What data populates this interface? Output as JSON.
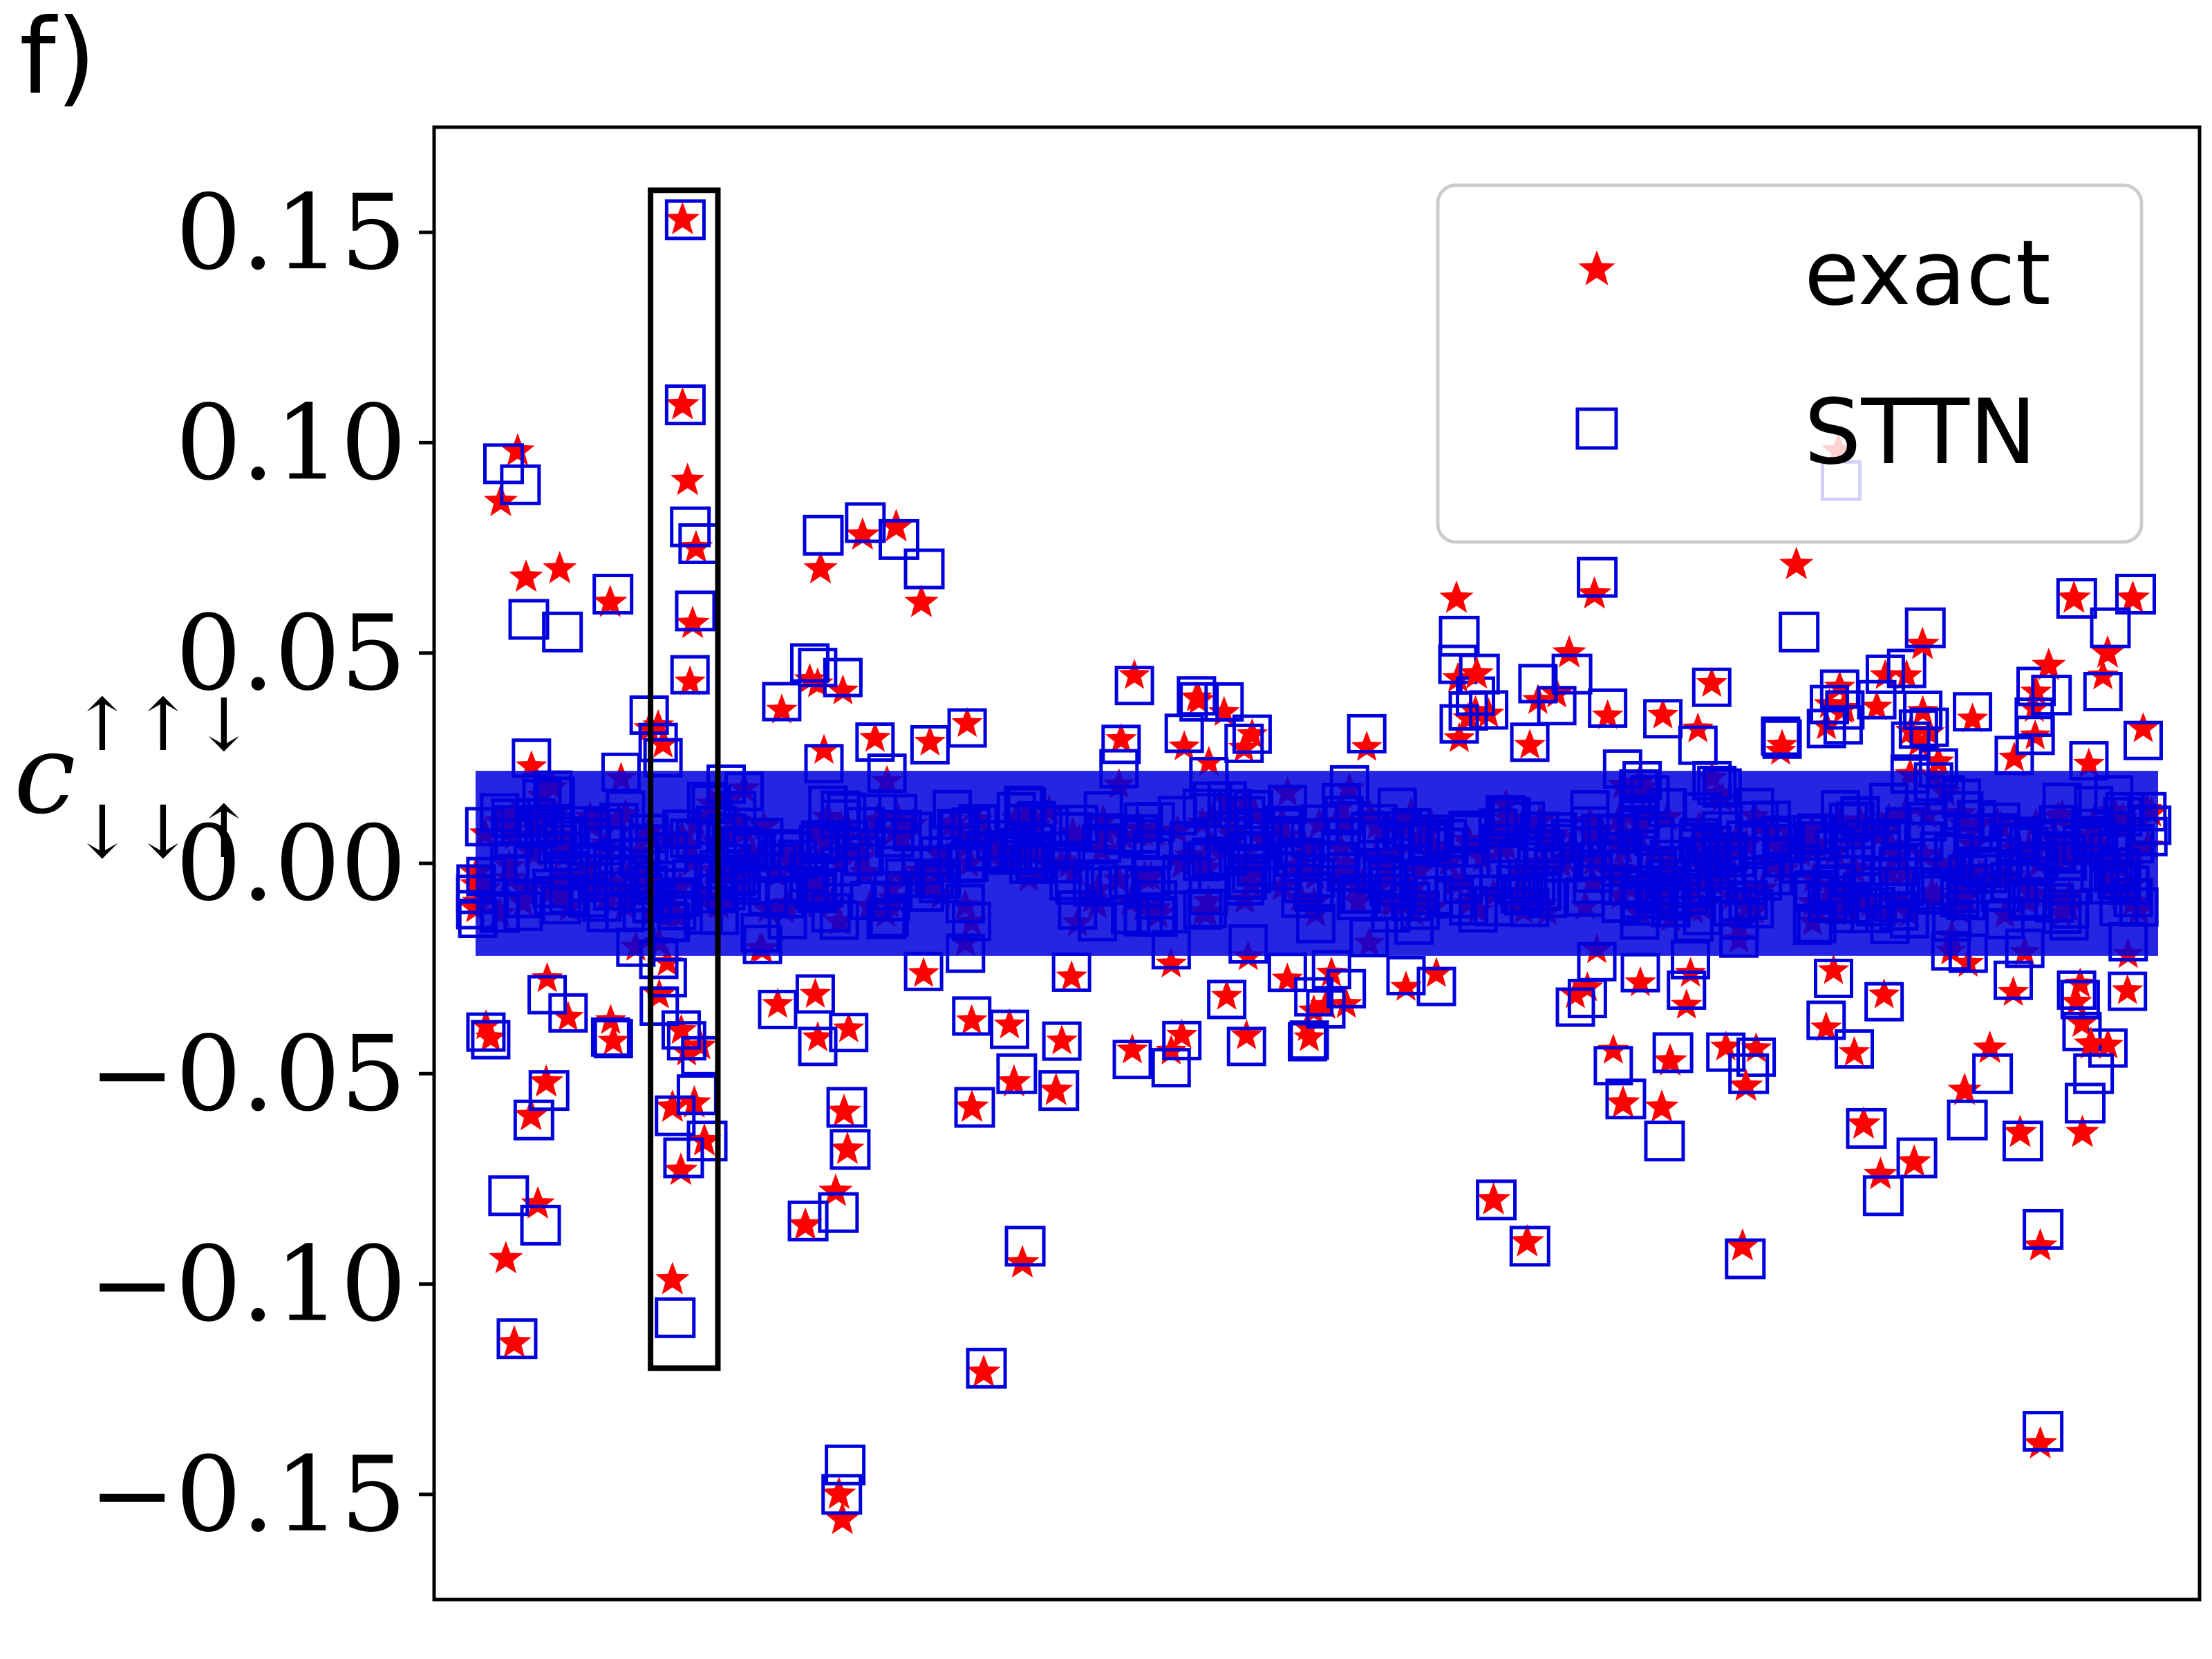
{
  "panel_label": "f)",
  "colors": {
    "exact": "#ff0000",
    "sttn": "#0000dd",
    "axis": "#000000",
    "legend_border": "#cccccc"
  },
  "chart_data": {
    "type": "scatter",
    "title": "",
    "xlabel": "",
    "ylabel": "c",
    "ylabel_superscript": "↑↑↓",
    "ylabel_subscript": "↓↓↑",
    "ylim": [
      -0.175,
      0.175
    ],
    "xlim": [
      0,
      100
    ],
    "x_ticks_shown": false,
    "yticks": [
      0.15,
      0.1,
      0.05,
      0.0,
      -0.05,
      -0.1,
      -0.15
    ],
    "ytick_labels": [
      "0.15",
      "0.10",
      "0.05",
      "0.00",
      "−0.05",
      "−0.10",
      "−0.15"
    ],
    "grid": false,
    "legend": {
      "placement": "upper-right",
      "entries": [
        {
          "label": "exact",
          "marker": "star",
          "color": "#ff0000"
        },
        {
          "label": "STTN",
          "marker": "square",
          "color": "#0000dd"
        }
      ]
    },
    "highlight_box": {
      "x_range": [
        10.4,
        14.4
      ],
      "y_range": [
        -0.12,
        0.16
      ]
    },
    "outliers": [
      {
        "x": 1.5,
        "exact": 0.086,
        "sttn": 0.095
      },
      {
        "x": 2.5,
        "exact": 0.098,
        "sttn": 0.09
      },
      {
        "x": 3.0,
        "exact": 0.068,
        "sttn": 0.058
      },
      {
        "x": 5.0,
        "exact": 0.07,
        "sttn": 0.055
      },
      {
        "x": 8.0,
        "exact": 0.062,
        "sttn": 0.064
      },
      {
        "x": 1.8,
        "exact": -0.094,
        "sttn": -0.079
      },
      {
        "x": 2.3,
        "exact": -0.114,
        "sttn": -0.113
      },
      {
        "x": 3.7,
        "exact": -0.081,
        "sttn": -0.086
      },
      {
        "x": 3.3,
        "exact": -0.06,
        "sttn": -0.061
      },
      {
        "x": 4.2,
        "exact": -0.052,
        "sttn": -0.054
      },
      {
        "x": 12.3,
        "exact": 0.153,
        "sttn": 0.153
      },
      {
        "x": 12.3,
        "exact": 0.109,
        "sttn": 0.109
      },
      {
        "x": 12.6,
        "exact": 0.091,
        "sttn": 0.08
      },
      {
        "x": 13.1,
        "exact": 0.075,
        "sttn": 0.076
      },
      {
        "x": 12.9,
        "exact": 0.057,
        "sttn": 0.06
      },
      {
        "x": 11.7,
        "exact": -0.099,
        "sttn": -0.108
      },
      {
        "x": 12.2,
        "exact": -0.073,
        "sttn": -0.07
      },
      {
        "x": 11.7,
        "exact": -0.058,
        "sttn": -0.06
      },
      {
        "x": 13.6,
        "exact": -0.066,
        "sttn": -0.066
      },
      {
        "x": 13.0,
        "exact": -0.057,
        "sttn": -0.055
      },
      {
        "x": 21.8,
        "exact": -0.156,
        "sttn": -0.143
      },
      {
        "x": 21.6,
        "exact": -0.15,
        "sttn": -0.15
      },
      {
        "x": 19.6,
        "exact": -0.086,
        "sttn": -0.085
      },
      {
        "x": 21.4,
        "exact": -0.078,
        "sttn": -0.083
      },
      {
        "x": 22.1,
        "exact": -0.068,
        "sttn": -0.068
      },
      {
        "x": 21.9,
        "exact": -0.059,
        "sttn": -0.058
      },
      {
        "x": 20.5,
        "exact": 0.07,
        "sttn": 0.078
      },
      {
        "x": 23.0,
        "exact": 0.078,
        "sttn": 0.081
      },
      {
        "x": 25.0,
        "exact": 0.08,
        "sttn": 0.077
      },
      {
        "x": 26.5,
        "exact": 0.062,
        "sttn": 0.07
      },
      {
        "x": 30.2,
        "exact": -0.121,
        "sttn": -0.12
      },
      {
        "x": 32.5,
        "exact": -0.095,
        "sttn": -0.091
      },
      {
        "x": 29.5,
        "exact": -0.058,
        "sttn": -0.058
      },
      {
        "x": 32.0,
        "exact": -0.052,
        "sttn": -0.05
      },
      {
        "x": 34.5,
        "exact": -0.054,
        "sttn": -0.054
      },
      {
        "x": 58.3,
        "exact": 0.063,
        "sttn": 0.054
      },
      {
        "x": 66.5,
        "exact": 0.064,
        "sttn": 0.068
      },
      {
        "x": 59.5,
        "exact": 0.045,
        "sttn": 0.045
      },
      {
        "x": 65.0,
        "exact": 0.05,
        "sttn": 0.045
      },
      {
        "x": 60.5,
        "exact": -0.08,
        "sttn": -0.08
      },
      {
        "x": 62.5,
        "exact": -0.09,
        "sttn": -0.091
      },
      {
        "x": 68.2,
        "exact": -0.057,
        "sttn": -0.056
      },
      {
        "x": 70.5,
        "exact": -0.058,
        "sttn": -0.066
      },
      {
        "x": 71.0,
        "exact": -0.047,
        "sttn": -0.045
      },
      {
        "x": 75.3,
        "exact": -0.091,
        "sttn": -0.094
      },
      {
        "x": 75.5,
        "exact": -0.053,
        "sttn": -0.05
      },
      {
        "x": 81.0,
        "exact": 0.098,
        "sttn": 0.091
      },
      {
        "x": 78.5,
        "exact": 0.071,
        "sttn": 0.055
      },
      {
        "x": 86.0,
        "exact": 0.052,
        "sttn": 0.056
      },
      {
        "x": 82.5,
        "exact": -0.062,
        "sttn": -0.063
      },
      {
        "x": 83.5,
        "exact": -0.074,
        "sttn": -0.079
      },
      {
        "x": 85.5,
        "exact": -0.071,
        "sttn": -0.07
      },
      {
        "x": 88.5,
        "exact": -0.054,
        "sttn": -0.061
      },
      {
        "x": 90.0,
        "exact": -0.044,
        "sttn": -0.05
      },
      {
        "x": 91.8,
        "exact": -0.064,
        "sttn": -0.066
      },
      {
        "x": 93.0,
        "exact": -0.091,
        "sttn": -0.087
      },
      {
        "x": 93.0,
        "exact": -0.138,
        "sttn": -0.135
      },
      {
        "x": 93.5,
        "exact": 0.047,
        "sttn": 0.04
      },
      {
        "x": 95.0,
        "exact": 0.063,
        "sttn": 0.063
      },
      {
        "x": 95.5,
        "exact": -0.064,
        "sttn": -0.057
      },
      {
        "x": 98.5,
        "exact": 0.063,
        "sttn": 0.064
      },
      {
        "x": 97.0,
        "exact": 0.05,
        "sttn": 0.056
      },
      {
        "x": 96.0,
        "exact": -0.043,
        "sttn": -0.05
      }
    ],
    "bulk": {
      "n_points": 600,
      "core_halfwidth": 0.012,
      "spread_halfwidth": 0.045,
      "seed": 7
    }
  }
}
